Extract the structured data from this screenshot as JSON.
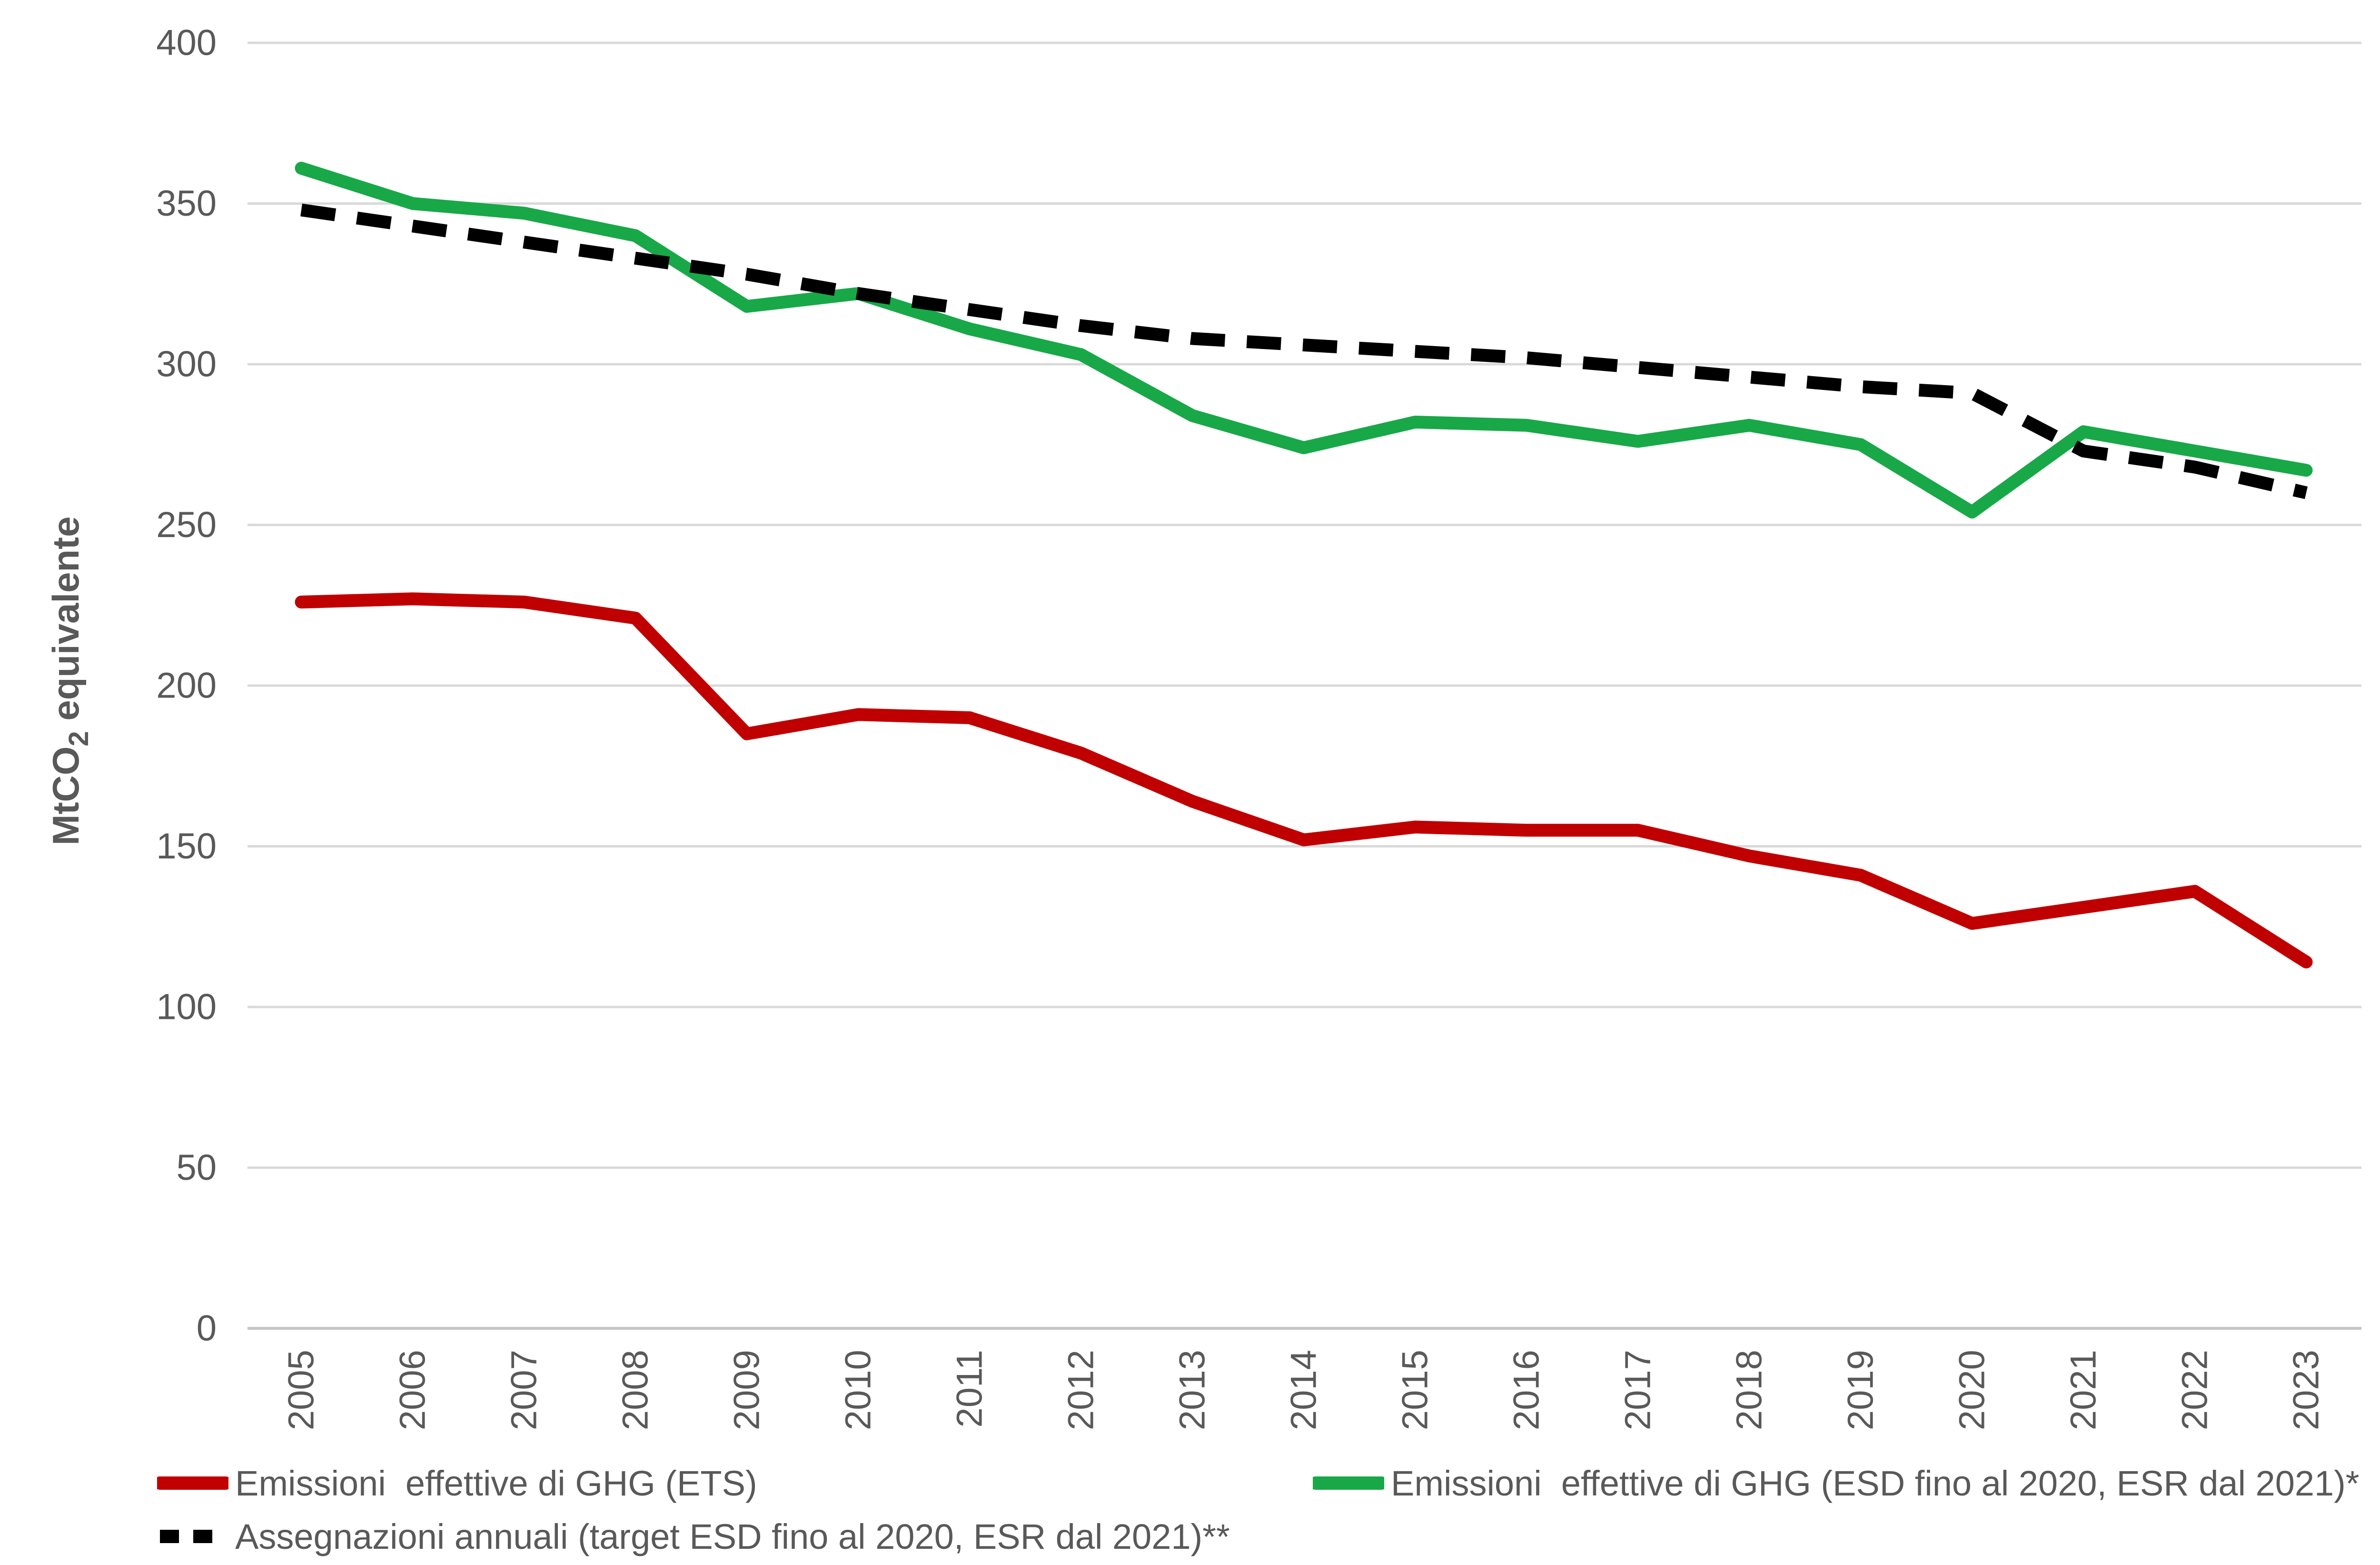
{
  "chart_data": {
    "type": "line",
    "title": "",
    "xlabel": "",
    "ylabel": "MtCO2 equivalente",
    "ylabel_prefix": "MtCO",
    "ylabel_sub": "2",
    "ylabel_suffix": " equivalente",
    "x": [
      2005,
      2006,
      2007,
      2008,
      2009,
      2010,
      2011,
      2012,
      2013,
      2014,
      2015,
      2016,
      2017,
      2018,
      2019,
      2020,
      2021,
      2022,
      2023
    ],
    "series": [
      {
        "name": "Emissioni  effettive di GHG (ETS)",
        "color": "#C00000",
        "dashed": false,
        "values": [
          226,
          227,
          226,
          221,
          185,
          191,
          190,
          179,
          164,
          152,
          156,
          155,
          155,
          147,
          141,
          126,
          131,
          136,
          114
        ]
      },
      {
        "name": "Emissioni  effettive di GHG (ESD fino al 2020, ESR dal 2021)*",
        "color": "#18A848",
        "dashed": false,
        "values": [
          361,
          350,
          347,
          340,
          318,
          322,
          311,
          303,
          284,
          274,
          282,
          281,
          276,
          281,
          275,
          254,
          279,
          273,
          267
        ]
      },
      {
        "name": "Assegnazioni annuali (target ESD fino al 2020, ESR dal 2021)**",
        "color": "#000000",
        "dashed": true,
        "values": [
          348,
          343,
          338,
          333,
          328,
          322,
          317,
          312,
          308,
          306,
          304,
          302,
          299,
          296,
          293,
          291,
          273,
          268,
          260
        ]
      }
    ],
    "ylim": [
      0,
      400
    ],
    "yticks": [
      400,
      350,
      300,
      250,
      200,
      150,
      100,
      50,
      0
    ],
    "grid": "horizontal",
    "legend_position": "bottom",
    "colors": {
      "axis_text": "#595959",
      "gridline": "#D9D9D9",
      "axis_line": "#C6C6C6",
      "background": "#FFFFFF"
    }
  }
}
